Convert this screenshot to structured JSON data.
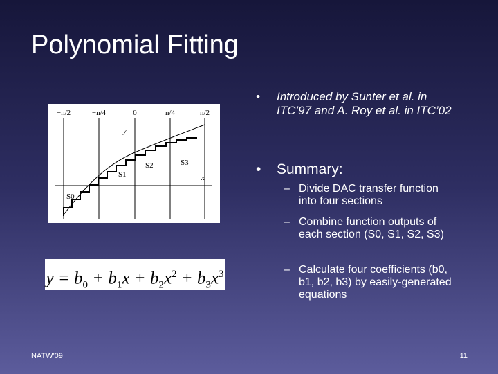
{
  "title": "Polynomial Fitting",
  "figure": {
    "x_ticks": [
      "−n/2",
      "−n/4",
      "0",
      "n/4",
      "n/2"
    ],
    "y_axis": "y",
    "x_axis": "x",
    "sections": [
      "S0",
      "S1",
      "S2",
      "S3"
    ]
  },
  "formula": [
    "y = b",
    "0",
    " + b",
    "1",
    "x + b",
    "2",
    "x",
    "2",
    " + b",
    "3",
    "x",
    "3"
  ],
  "bullets": [
    {
      "text": "Introduced by Sunter et al. in ITC’97 and A. Roy et al. in ITC’02"
    },
    {
      "text": "Summary:",
      "sub": [
        "Divide DAC transfer function into four sections",
        "Combine function outputs of each section (S0, S1, S2, S3)",
        "Calculate four coefficients (b0, b1, b2, b3) by easily-generated equations"
      ]
    }
  ],
  "footer": "NATW'09",
  "page_number": "11"
}
